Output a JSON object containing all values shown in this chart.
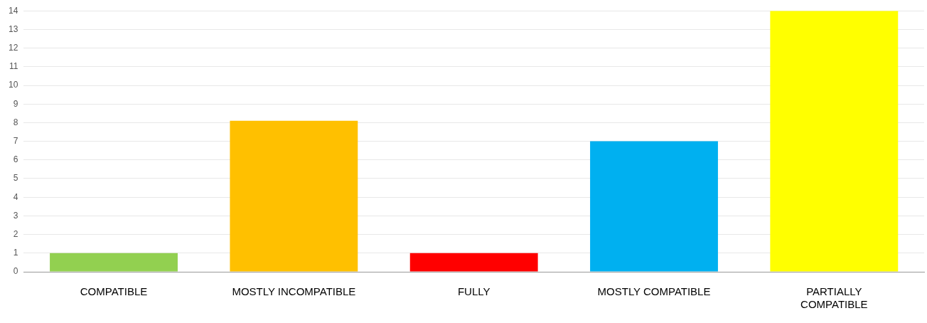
{
  "chart_data": {
    "type": "bar",
    "categories": [
      "COMPATIBLE",
      "MOSTLY INCOMPATIBLE",
      "FULLY",
      "MOSTLY COMPATIBLE",
      "PARTIALLY COMPATIBLE"
    ],
    "values": [
      1,
      8.1,
      1,
      7,
      14
    ],
    "colors": [
      "#92d050",
      "#ffc000",
      "#ff0000",
      "#00b0f0",
      "#ffff00"
    ],
    "ylim": [
      0,
      14
    ],
    "yticks": [
      0,
      1,
      2,
      3,
      4,
      5,
      6,
      7,
      8,
      9,
      10,
      11,
      12,
      13,
      14
    ],
    "grid": "y",
    "legend": false
  }
}
